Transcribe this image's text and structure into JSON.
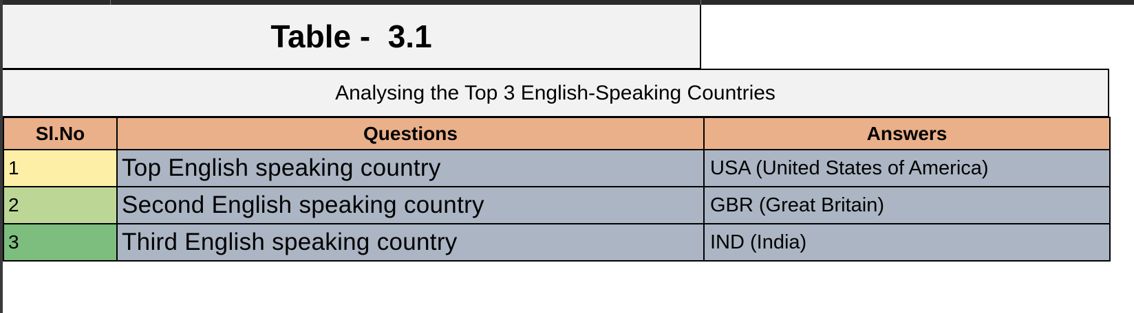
{
  "table": {
    "title": "Table -  3.1",
    "subtitle": "Analysing the Top 3 English-Speaking Countries",
    "headers": [
      "Sl.No",
      "Questions",
      "Answers"
    ],
    "rows": [
      {
        "sl": "1",
        "question": "Top English speaking country",
        "answer": "USA (United States of America)",
        "sl_color": "#fdf0a6"
      },
      {
        "sl": "2",
        "question": "Second English speaking country",
        "answer": "GBR (Great Britain)",
        "sl_color": "#bcd795"
      },
      {
        "sl": "3",
        "question": "Third English speaking country",
        "answer": "IND (India)",
        "sl_color": "#7dbd7d"
      }
    ]
  },
  "colors": {
    "header_bg": "#eab08a",
    "answer_bg": "#abb5c3",
    "title_bg": "#f2f2f2"
  }
}
